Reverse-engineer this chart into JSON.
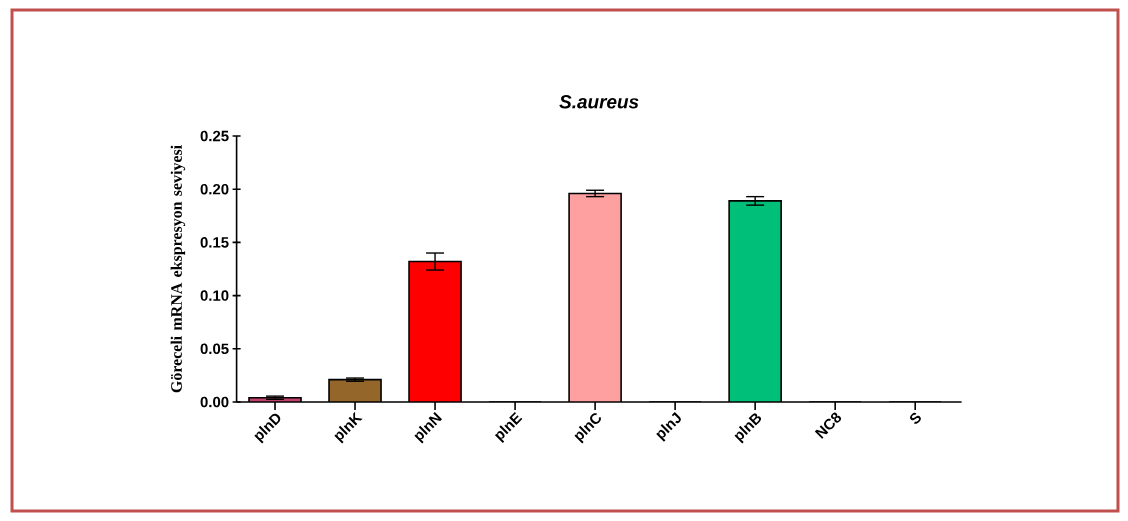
{
  "chart_data": {
    "type": "bar",
    "title": "*S.aureus*",
    "ylabel": "Göreceli mRNA ekspresyon seviyesi",
    "categories": [
      "plnD",
      "plnK",
      "plnN",
      "plnE",
      "plnC",
      "plnJ",
      "plnB",
      "NC8",
      "S"
    ],
    "values": [
      0.004,
      0.021,
      0.132,
      0,
      0.196,
      0,
      0.189,
      0,
      0
    ],
    "errors": [
      0.0015,
      0.0015,
      0.008,
      null,
      0.003,
      null,
      0.004,
      null,
      null
    ],
    "colors": [
      "#c2406a",
      "#94662a",
      "#ff0000",
      "#ffffff",
      "#ffa0a0",
      "#ffffff",
      "#00bf78",
      "#ffffff",
      "#ffffff"
    ],
    "ylim": [
      0,
      0.25
    ],
    "yticks": [
      {
        "value": 0,
        "label": "0.00"
      },
      {
        "value": 0.05,
        "label": "0.05"
      },
      {
        "value": 0.1,
        "label": "0.10"
      },
      {
        "value": 0.15,
        "label": "0.15"
      },
      {
        "value": 0.2,
        "label": "0.20"
      },
      {
        "value": 0.25,
        "label": "0.25"
      }
    ],
    "grid": false
  }
}
